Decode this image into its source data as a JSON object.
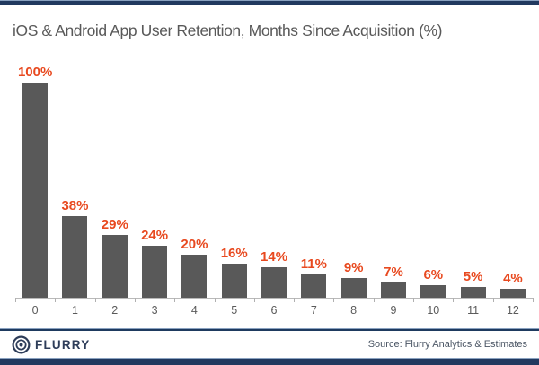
{
  "header": {
    "title": "iOS & Android App User Retention, Months Since Acquisition (%)"
  },
  "chart_data": {
    "type": "bar",
    "title": "iOS & Android App User Retention, Months Since Acquisition (%)",
    "categories": [
      "0",
      "1",
      "2",
      "3",
      "4",
      "5",
      "6",
      "7",
      "8",
      "9",
      "10",
      "11",
      "12"
    ],
    "values": [
      100,
      38,
      29,
      24,
      20,
      16,
      14,
      11,
      9,
      7,
      6,
      5,
      4
    ],
    "value_label_suffix": "%",
    "xlabel": "",
    "ylabel": "",
    "ylim": [
      0,
      100
    ],
    "grid": false,
    "legend": "none"
  },
  "footer": {
    "logo_text": "FLURRY",
    "source": "Source: Flurry Analytics & Estimates"
  },
  "colors": {
    "bar": "#595959",
    "value_label": "#e8491f",
    "title_text": "#595959",
    "axis": "#b9b9b9",
    "navy": "#21395f",
    "steel_blue": "#8aa2c0"
  }
}
